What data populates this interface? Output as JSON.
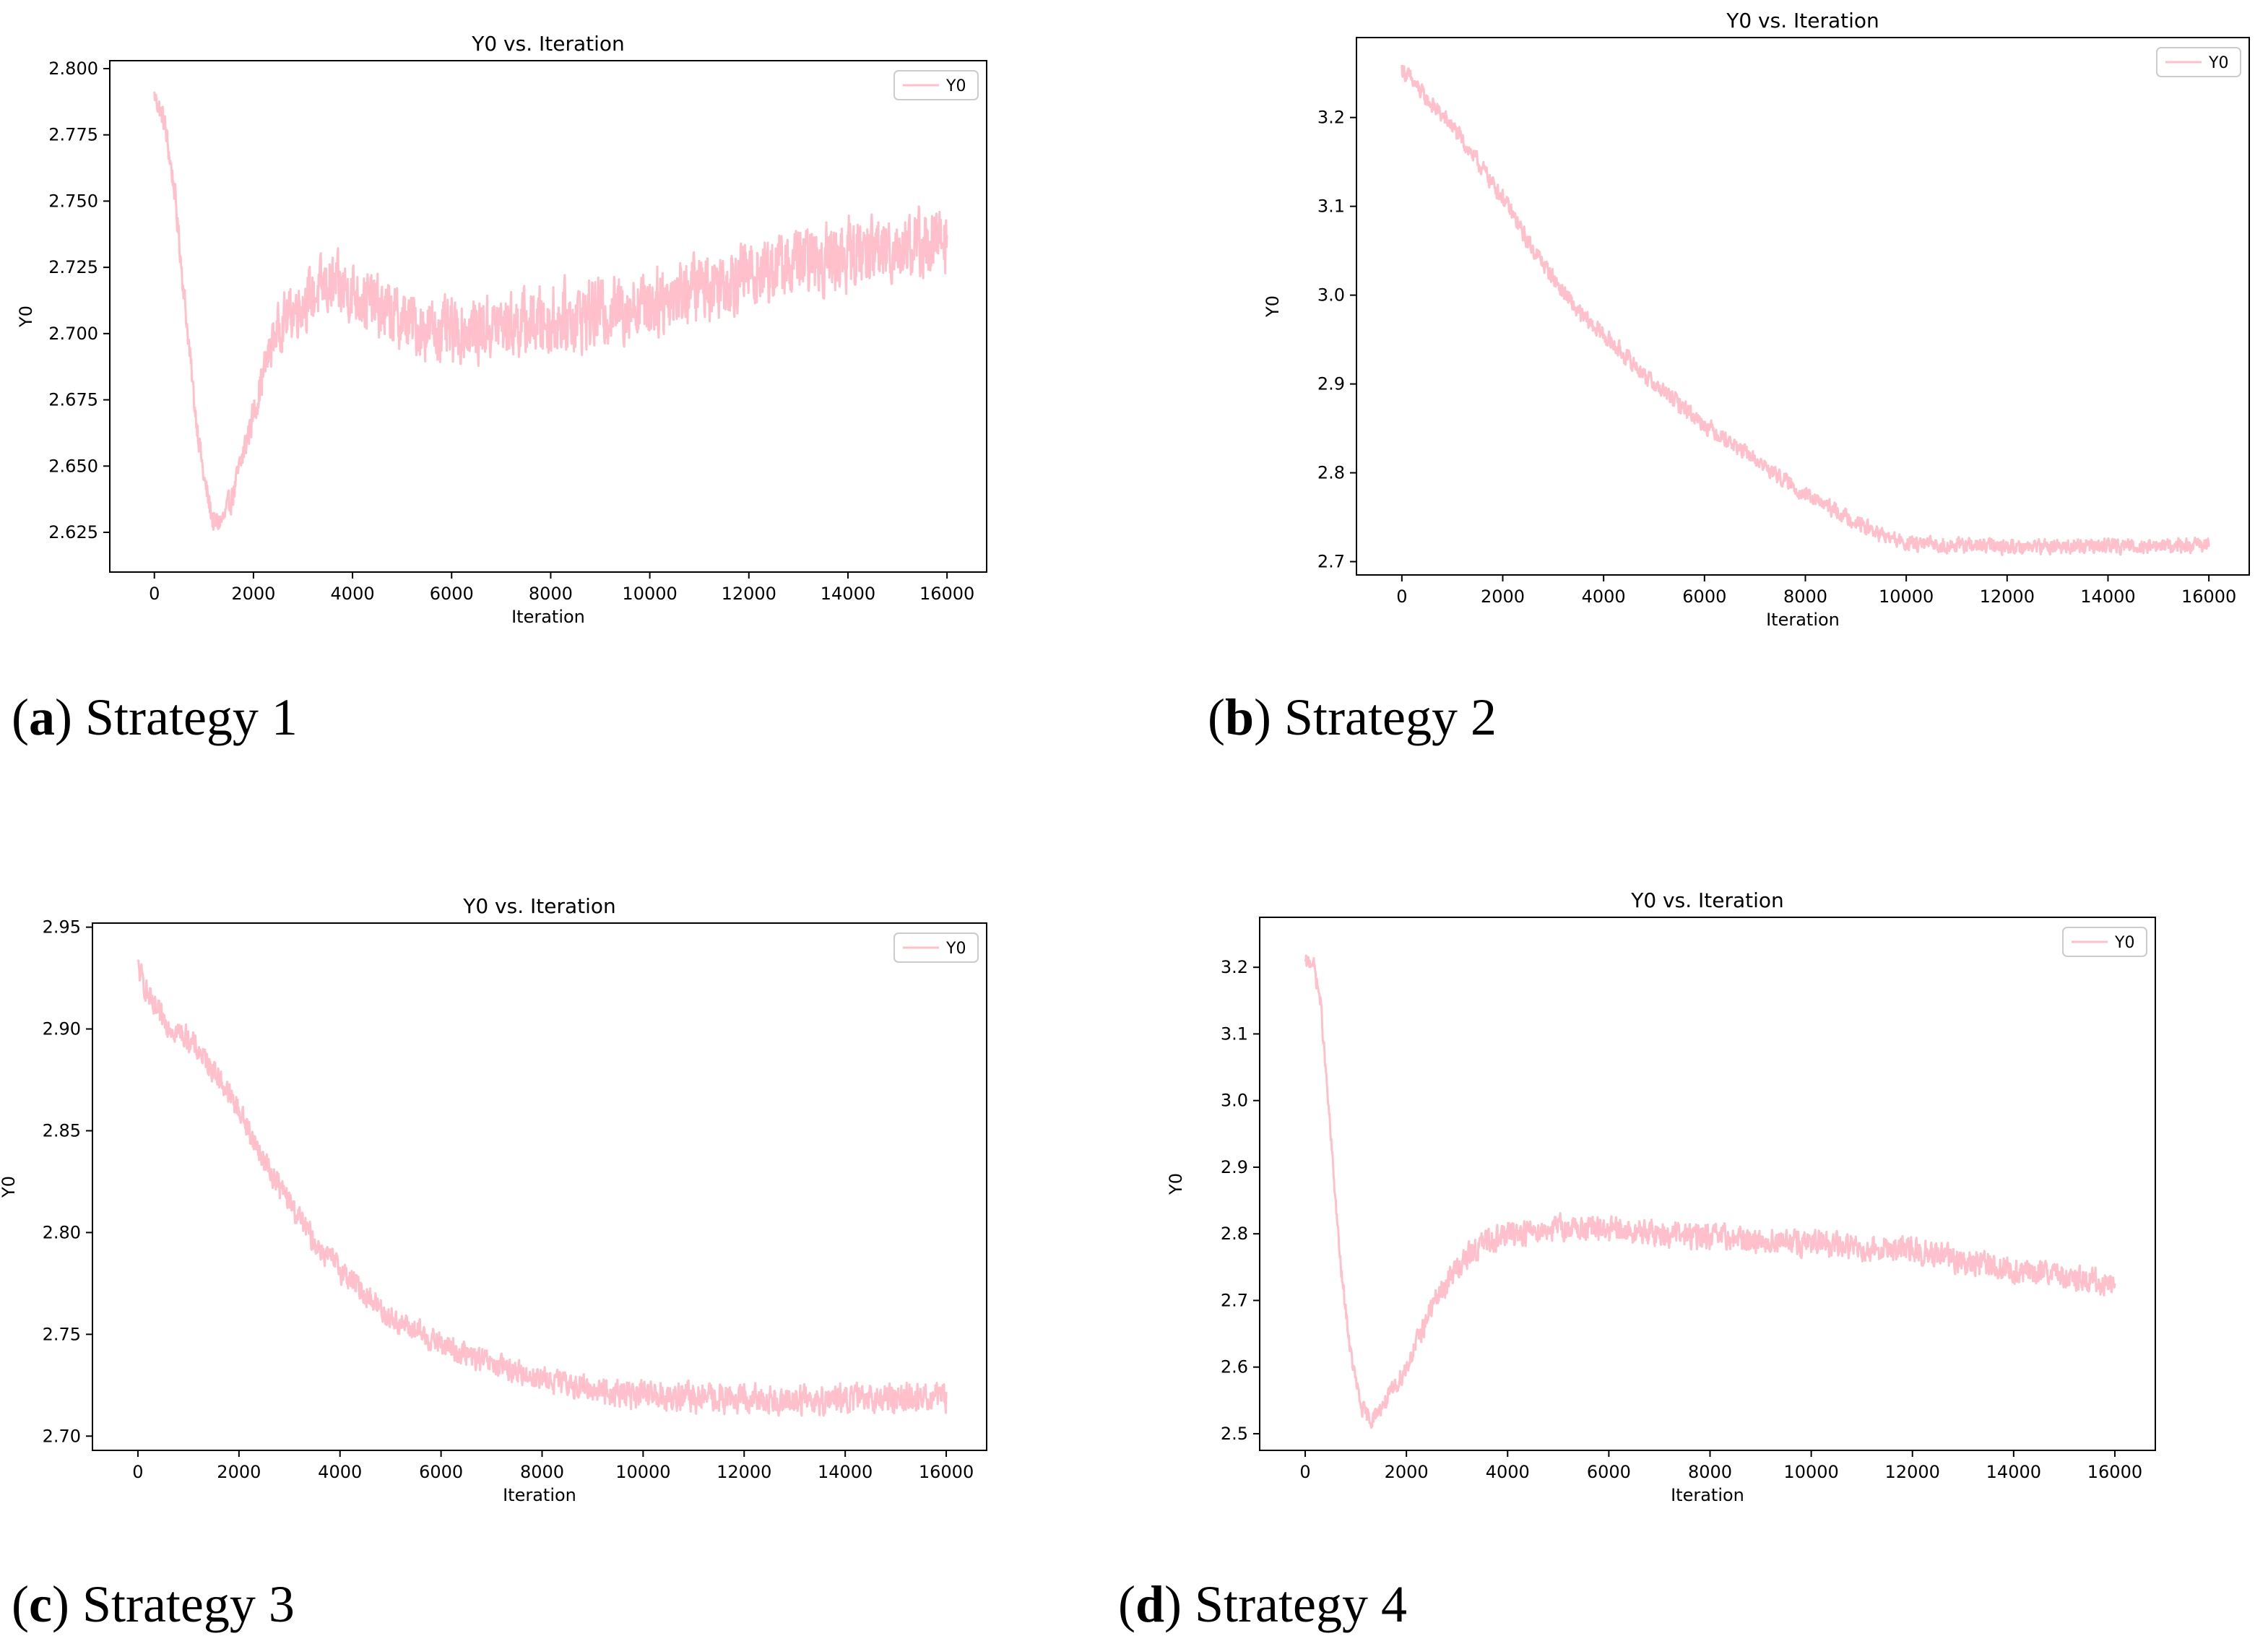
{
  "colors": {
    "line": "#ffc0cb",
    "axis": "#000000",
    "legend_border": "#cccccc"
  },
  "chart_data": [
    {
      "type": "line",
      "title": "Y0 vs. Iteration",
      "xlabel": "Iteration",
      "ylabel": "Y0",
      "legend": "Y0",
      "legend_position": "top-right",
      "caption_letter": "a",
      "caption_text": "Strategy 1",
      "xlim": [
        -900,
        16800
      ],
      "ylim": [
        2.61,
        2.803
      ],
      "xticks": [
        0,
        2000,
        4000,
        6000,
        8000,
        10000,
        12000,
        14000,
        16000
      ],
      "yticks": [
        2.625,
        2.65,
        2.675,
        2.7,
        2.725,
        2.75,
        2.775,
        2.8
      ],
      "ytick_labels": [
        "2.625",
        "2.650",
        "2.675",
        "2.700",
        "2.725",
        "2.750",
        "2.775",
        "2.800"
      ],
      "series": [
        {
          "name": "Y0",
          "x": [
            0,
            200,
            400,
            600,
            800,
            1000,
            1200,
            1400,
            1600,
            1800,
            2000,
            2200,
            2400,
            2600,
            3000,
            3500,
            4000,
            4500,
            5000,
            5500,
            6000,
            7000,
            8000,
            9000,
            10000,
            11000,
            12000,
            13000,
            14000,
            15000,
            16000
          ],
          "y": [
            2.79,
            2.78,
            2.755,
            2.715,
            2.675,
            2.645,
            2.628,
            2.63,
            2.64,
            2.655,
            2.67,
            2.685,
            2.698,
            2.705,
            2.712,
            2.718,
            2.716,
            2.71,
            2.705,
            2.702,
            2.7,
            2.703,
            2.705,
            2.708,
            2.712,
            2.718,
            2.723,
            2.727,
            2.73,
            2.733,
            2.735
          ],
          "noise": [
            0.003,
            0.004,
            0.004,
            0.004,
            0.004,
            0.004,
            0.004,
            0.004,
            0.004,
            0.005,
            0.005,
            0.006,
            0.007,
            0.008,
            0.009,
            0.01,
            0.01,
            0.01,
            0.01,
            0.01,
            0.01,
            0.01,
            0.011,
            0.011,
            0.011,
            0.011,
            0.011,
            0.011,
            0.011,
            0.011,
            0.011
          ]
        }
      ]
    },
    {
      "type": "line",
      "title": "Y0 vs. Iteration",
      "xlabel": "Iteration",
      "ylabel": "Y0",
      "legend": "Y0",
      "legend_position": "top-right",
      "caption_letter": "b",
      "caption_text": "Strategy 2",
      "xlim": [
        -900,
        16800
      ],
      "ylim": [
        2.685,
        3.29
      ],
      "xticks": [
        0,
        2000,
        4000,
        6000,
        8000,
        10000,
        12000,
        14000,
        16000
      ],
      "yticks": [
        2.7,
        2.8,
        2.9,
        3.0,
        3.1,
        3.2
      ],
      "ytick_labels": [
        "2.7",
        "2.8",
        "2.9",
        "3.0",
        "3.1",
        "3.2"
      ],
      "series": [
        {
          "name": "Y0",
          "x": [
            0,
            500,
            1000,
            1500,
            2000,
            2500,
            3000,
            3500,
            4000,
            5000,
            6000,
            7000,
            8000,
            9000,
            9500,
            10000,
            11000,
            12000,
            13000,
            14000,
            15000,
            16000
          ],
          "y": [
            3.255,
            3.22,
            3.19,
            3.15,
            3.11,
            3.06,
            3.02,
            2.98,
            2.955,
            2.9,
            2.855,
            2.815,
            2.775,
            2.745,
            2.73,
            2.72,
            2.718,
            2.717,
            2.717,
            2.718,
            2.718,
            2.718
          ],
          "noise": [
            0.008,
            0.008,
            0.008,
            0.008,
            0.008,
            0.008,
            0.008,
            0.008,
            0.008,
            0.008,
            0.008,
            0.007,
            0.007,
            0.007,
            0.007,
            0.007,
            0.007,
            0.007,
            0.007,
            0.007,
            0.007,
            0.007
          ]
        }
      ]
    },
    {
      "type": "line",
      "title": "Y0 vs. Iteration",
      "xlabel": "Iteration",
      "ylabel": "Y0",
      "legend": "Y0",
      "legend_position": "top-right",
      "caption_letter": "c",
      "caption_text": "Strategy 3",
      "xlim": [
        -900,
        16800
      ],
      "ylim": [
        2.693,
        2.952
      ],
      "xticks": [
        0,
        2000,
        4000,
        6000,
        8000,
        10000,
        12000,
        14000,
        16000
      ],
      "yticks": [
        2.7,
        2.75,
        2.8,
        2.85,
        2.9,
        2.95
      ],
      "ytick_labels": [
        "2.70",
        "2.75",
        "2.80",
        "2.85",
        "2.90",
        "2.95"
      ],
      "series": [
        {
          "name": "Y0",
          "x": [
            0,
            300,
            700,
            1000,
            1500,
            2000,
            2500,
            3000,
            3500,
            4000,
            4500,
            5000,
            6000,
            7000,
            8000,
            9000,
            10000,
            11000,
            12000,
            13000,
            14000,
            15000,
            16000
          ],
          "y": [
            2.93,
            2.91,
            2.9,
            2.895,
            2.88,
            2.86,
            2.835,
            2.815,
            2.795,
            2.782,
            2.77,
            2.758,
            2.745,
            2.735,
            2.728,
            2.723,
            2.72,
            2.719,
            2.718,
            2.718,
            2.718,
            2.719,
            2.719
          ],
          "noise": [
            0.005,
            0.005,
            0.005,
            0.005,
            0.005,
            0.005,
            0.005,
            0.005,
            0.005,
            0.005,
            0.005,
            0.005,
            0.005,
            0.005,
            0.005,
            0.005,
            0.006,
            0.006,
            0.006,
            0.006,
            0.006,
            0.006,
            0.006
          ]
        }
      ]
    },
    {
      "type": "line",
      "title": "Y0 vs. Iteration",
      "xlabel": "Iteration",
      "ylabel": "Y0",
      "legend": "Y0",
      "legend_position": "top-right",
      "caption_letter": "d",
      "caption_text": "Strategy 4",
      "xlim": [
        -900,
        16800
      ],
      "ylim": [
        2.475,
        3.275
      ],
      "xticks": [
        0,
        2000,
        4000,
        6000,
        8000,
        10000,
        12000,
        14000,
        16000
      ],
      "yticks": [
        2.5,
        2.6,
        2.7,
        2.8,
        2.9,
        3.0,
        3.1,
        3.2
      ],
      "ytick_labels": [
        "2.5",
        "2.6",
        "2.7",
        "2.8",
        "2.9",
        "3.0",
        "3.1",
        "3.2"
      ],
      "series": [
        {
          "name": "Y0",
          "x": [
            0,
            150,
            300,
            500,
            700,
            900,
            1100,
            1300,
            1500,
            1700,
            2000,
            2500,
            3000,
            3500,
            4000,
            5000,
            6000,
            7000,
            8000,
            9000,
            10000,
            11000,
            12000,
            13000,
            14000,
            15000,
            16000
          ],
          "y": [
            3.205,
            3.21,
            3.15,
            2.95,
            2.75,
            2.62,
            2.54,
            2.52,
            2.54,
            2.56,
            2.6,
            2.69,
            2.75,
            2.785,
            2.8,
            2.81,
            2.805,
            2.8,
            2.795,
            2.79,
            2.785,
            2.78,
            2.775,
            2.76,
            2.745,
            2.735,
            2.725
          ],
          "noise": [
            0.01,
            0.01,
            0.01,
            0.01,
            0.01,
            0.01,
            0.01,
            0.01,
            0.01,
            0.012,
            0.012,
            0.014,
            0.016,
            0.016,
            0.016,
            0.016,
            0.016,
            0.016,
            0.016,
            0.016,
            0.016,
            0.016,
            0.016,
            0.016,
            0.016,
            0.016,
            0.016
          ]
        }
      ]
    }
  ]
}
